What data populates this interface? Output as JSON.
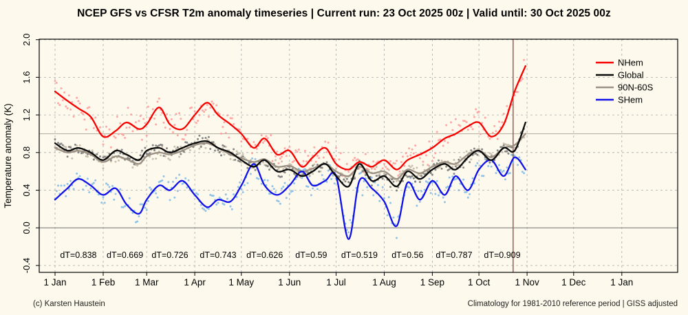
{
  "title": "NCEP GFS vs CFSR T2m anomaly timeseries | Current run: 23 Oct 2025 00z | Valid until: 30 Oct 2025 00z",
  "footer": {
    "left": "(c) Karsten Haustein",
    "right": "Climatology for 1981-2010 reference period | GISS adjusted"
  },
  "chart_data": {
    "type": "line",
    "title": "NCEP GFS vs CFSR T2m anomaly timeseries | Current run: 23 Oct 2025 00z | Valid until: 30 Oct 2025 00z",
    "xlabel": "",
    "ylabel": "Temperature anomaly (K)",
    "ylim": [
      -0.473,
      2.005
    ],
    "xlim_days": [
      -10.2,
      401
    ],
    "grid": {
      "h_dashed": [
        -0.4,
        0.4,
        0.8,
        1.2,
        1.6,
        2.0
      ],
      "h_solid": [
        0.0,
        1.0
      ],
      "v_dashed_at_month_ticks": true,
      "dash_color": "#a9a9a9",
      "zero_line_color": "#7f7f7f",
      "aux_line_color": "#b5ad9e"
    },
    "yticks": {
      "values": [
        -0.4,
        0.0,
        0.4,
        0.8,
        1.2,
        1.6,
        2.0
      ],
      "labels": [
        "-0.4",
        "0.0",
        "0.4",
        "0.8",
        "1.2",
        "1.6",
        "2.0"
      ]
    },
    "xticks": {
      "days": [
        0,
        31,
        59,
        90,
        120,
        151,
        181,
        212,
        243,
        273,
        304,
        334,
        365
      ],
      "labels": [
        "1 Jan",
        "1 Feb",
        "1 Mar",
        "1 Apr",
        "1 May",
        "1 Jun",
        "1 Jul",
        "1 Aug",
        "1 Sep",
        "1 Oct",
        "1 Nov",
        "1 Dec",
        "1 Jan"
      ]
    },
    "x_days": [
      0,
      8,
      15,
      23,
      31,
      39,
      46,
      54,
      59,
      67,
      74,
      82,
      90,
      98,
      105,
      113,
      120,
      128,
      135,
      143,
      151,
      159,
      166,
      174,
      181,
      189,
      196,
      204,
      212,
      220,
      227,
      235,
      243,
      251,
      258,
      266,
      273,
      281,
      289,
      296,
      303
    ],
    "series": [
      {
        "name": "NHem",
        "color": "#f80000",
        "dot_color": "#ff9d9d",
        "noise": 0.18,
        "values": [
          1.45,
          1.35,
          1.27,
          1.18,
          0.97,
          1.03,
          1.12,
          1.05,
          1.1,
          1.28,
          1.1,
          1.05,
          1.2,
          1.33,
          1.2,
          1.1,
          1.0,
          0.85,
          0.95,
          0.78,
          0.82,
          0.65,
          0.75,
          0.85,
          0.68,
          0.62,
          0.7,
          0.65,
          0.72,
          0.62,
          0.72,
          0.78,
          0.85,
          0.95,
          1.0,
          1.08,
          1.12,
          0.97,
          1.1,
          1.45,
          1.72
        ]
      },
      {
        "name": "Global",
        "color": "#0a0a0a",
        "dot_color": "#7a7a7a",
        "noise": 0.075,
        "values": [
          0.9,
          0.82,
          0.85,
          0.8,
          0.72,
          0.82,
          0.78,
          0.72,
          0.82,
          0.85,
          0.8,
          0.85,
          0.9,
          0.92,
          0.85,
          0.8,
          0.72,
          0.65,
          0.72,
          0.6,
          0.62,
          0.55,
          0.6,
          0.68,
          0.55,
          0.44,
          0.68,
          0.5,
          0.55,
          0.44,
          0.6,
          0.52,
          0.62,
          0.68,
          0.62,
          0.75,
          0.82,
          0.72,
          0.85,
          0.82,
          1.12
        ]
      },
      {
        "name": "90N-60S",
        "color": "#9a9083",
        "dot_color": "#c3b9a6",
        "noise": 0.075,
        "values": [
          0.85,
          0.8,
          0.82,
          0.78,
          0.7,
          0.76,
          0.73,
          0.68,
          0.76,
          0.8,
          0.78,
          0.82,
          0.88,
          0.9,
          0.85,
          0.78,
          0.74,
          0.7,
          0.73,
          0.65,
          0.66,
          0.6,
          0.63,
          0.68,
          0.6,
          0.55,
          0.65,
          0.58,
          0.6,
          0.52,
          0.62,
          0.58,
          0.65,
          0.7,
          0.68,
          0.78,
          0.82,
          0.75,
          0.85,
          0.88,
          1.0
        ]
      },
      {
        "name": "SHem",
        "color": "#1010e8",
        "dot_color": "#85bde8",
        "noise": 0.15,
        "values": [
          0.3,
          0.42,
          0.52,
          0.45,
          0.35,
          0.42,
          0.25,
          0.15,
          0.3,
          0.45,
          0.4,
          0.5,
          0.35,
          0.22,
          0.3,
          0.28,
          0.45,
          0.68,
          0.45,
          0.35,
          0.45,
          0.6,
          0.45,
          0.5,
          0.55,
          -0.12,
          0.5,
          0.42,
          0.28,
          0.02,
          0.48,
          0.3,
          0.5,
          0.35,
          0.55,
          0.4,
          0.62,
          0.72,
          0.55,
          0.75,
          0.62
        ]
      }
    ],
    "legend": {
      "position": "top-right",
      "entries": [
        "NHem",
        "Global",
        "90N-60S",
        "SHem"
      ]
    },
    "annotations": {
      "y_value": -0.29,
      "dT_labels": [
        {
          "text": "dT=0.838",
          "day": 15
        },
        {
          "text": "dT=0.669",
          "day": 45
        },
        {
          "text": "dT=0.726",
          "day": 74
        },
        {
          "text": "dT=0.743",
          "day": 105
        },
        {
          "text": "dT=0.626",
          "day": 135
        },
        {
          "text": "dT=0.59",
          "day": 165
        },
        {
          "text": "dT=0.519",
          "day": 196
        },
        {
          "text": "dT=0.56",
          "day": 227
        },
        {
          "text": "dT=0.787",
          "day": 257
        },
        {
          "text": "dT=0.909",
          "day": 288
        }
      ]
    },
    "current_run_marker": {
      "day": 295,
      "color": "#9e5b52"
    }
  }
}
